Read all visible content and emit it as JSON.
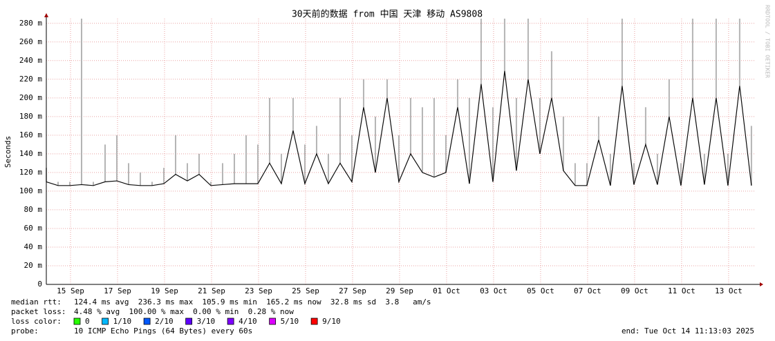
{
  "chart_data": {
    "type": "line",
    "title": "30天前的数据 from 中国 天津 移动 AS9808",
    "y_label": "Seconds",
    "side_text": "RRDTOOL / TOBI OETIKER",
    "x": [
      0,
      0.5,
      1,
      1.5,
      2,
      2.5,
      3,
      3.5,
      4,
      4.5,
      5,
      5.5,
      6,
      6.5,
      7,
      7.5,
      8,
      8.5,
      9,
      9.5,
      10,
      10.5,
      11,
      11.5,
      12,
      12.5,
      13,
      13.5,
      14,
      14.5,
      15,
      15.5,
      16,
      16.5,
      17,
      17.5,
      18,
      18.5,
      19,
      19.5,
      20,
      20.5,
      21,
      21.5,
      22,
      22.5,
      23,
      23.5,
      24,
      24.5,
      25,
      25.5,
      26,
      26.5,
      27,
      27.5,
      28,
      28.5,
      29,
      29.5,
      30
    ],
    "series": [
      {
        "color": "#0a0a0a",
        "style": "line",
        "values": [
          0.11,
          0.106,
          0.106,
          0.107,
          0.106,
          0.11,
          0.111,
          0.107,
          0.106,
          0.106,
          0.108,
          0.118,
          0.111,
          0.118,
          0.106,
          0.107,
          0.108,
          0.108,
          0.108,
          0.13,
          0.108,
          0.165,
          0.108,
          0.14,
          0.108,
          0.13,
          0.11,
          0.19,
          0.12,
          0.2,
          0.11,
          0.14,
          0.12,
          0.115,
          0.12,
          0.19,
          0.108,
          0.215,
          0.11,
          0.229,
          0.122,
          0.22,
          0.14,
          0.2,
          0.122,
          0.106,
          0.106,
          0.155,
          0.106,
          0.213,
          0.107,
          0.15,
          0.107,
          0.18,
          0.106,
          0.2,
          0.107,
          0.2,
          0.106,
          0.213,
          0.106
        ]
      },
      {
        "color": "#b4b4b4",
        "style": "spike",
        "values": [
          0.125,
          0.11,
          0.11,
          0.285,
          0.11,
          0.15,
          0.16,
          0.13,
          0.12,
          0.11,
          0.125,
          0.16,
          0.13,
          0.14,
          0.11,
          0.13,
          0.14,
          0.16,
          0.15,
          0.2,
          0.14,
          0.2,
          0.15,
          0.17,
          0.14,
          0.2,
          0.16,
          0.22,
          0.18,
          0.22,
          0.16,
          0.2,
          0.19,
          0.2,
          0.16,
          0.22,
          0.2,
          0.285,
          0.19,
          0.285,
          0.2,
          0.285,
          0.2,
          0.25,
          0.18,
          0.13,
          0.13,
          0.18,
          0.14,
          0.285,
          0.13,
          0.19,
          0.14,
          0.22,
          0.13,
          0.285,
          0.14,
          0.285,
          0.14,
          0.285,
          0.17
        ]
      }
    ],
    "xlim": [
      0,
      30.18
    ],
    "ylim": [
      0,
      0.285
    ],
    "xticks": [
      {
        "value": 1.03,
        "label": "15 Sep"
      },
      {
        "value": 3.03,
        "label": "17 Sep"
      },
      {
        "value": 5.03,
        "label": "19 Sep"
      },
      {
        "value": 7.03,
        "label": "21 Sep"
      },
      {
        "value": 9.03,
        "label": "23 Sep"
      },
      {
        "value": 11.03,
        "label": "25 Sep"
      },
      {
        "value": 13.03,
        "label": "27 Sep"
      },
      {
        "value": 15.03,
        "label": "29 Sep"
      },
      {
        "value": 17.03,
        "label": "01 Oct"
      },
      {
        "value": 19.03,
        "label": "03 Oct"
      },
      {
        "value": 21.03,
        "label": "05 Oct"
      },
      {
        "value": 23.03,
        "label": "07 Oct"
      },
      {
        "value": 25.03,
        "label": "09 Oct"
      },
      {
        "value": 27.03,
        "label": "11 Oct"
      },
      {
        "value": 29.03,
        "label": "13 Oct"
      }
    ],
    "yticks": [
      0,
      {
        "value": 0.02,
        "label": "20 m"
      },
      {
        "value": 0.04,
        "label": "40 m"
      },
      {
        "value": 0.06,
        "label": "60 m"
      },
      {
        "value": 0.08,
        "label": "80 m"
      },
      {
        "value": 0.1,
        "label": "100 m"
      },
      {
        "value": 0.12,
        "label": "120 m"
      },
      {
        "value": 0.14,
        "label": "140 m"
      },
      {
        "value": 0.16,
        "label": "160 m"
      },
      {
        "value": 0.18,
        "label": "180 m"
      },
      {
        "value": 0.2,
        "label": "200 m"
      },
      {
        "value": 0.22,
        "label": "220 m"
      },
      {
        "value": 0.24,
        "label": "240 m"
      },
      {
        "value": 0.26,
        "label": "260 m"
      },
      {
        "value": 0.28,
        "label": "280 m"
      }
    ],
    "grid": true
  },
  "footer": {
    "rtt_label": "median rtt:",
    "rtt_text": "124.4 ms avg  236.3 ms max  105.9 ms min  165.2 ms now  32.8 ms sd  3.8   am/s",
    "loss_label": "packet loss:",
    "loss_text": "4.48 % avg  100.00 % max  0.00 % min  0.28 % now",
    "color_label": "loss color:",
    "loss_colors": [
      {
        "name": "0",
        "color": "#26ff00"
      },
      {
        "name": "1/10",
        "color": "#00b8ff"
      },
      {
        "name": "2/10",
        "color": "#0059ff"
      },
      {
        "name": "3/10",
        "color": "#5e00ff"
      },
      {
        "name": "4/10",
        "color": "#7e00ff"
      },
      {
        "name": "5/10",
        "color": "#dd00ff"
      },
      {
        "name": "9/10",
        "color": "#ff0000"
      }
    ],
    "probe_label": "probe:",
    "probe_text": "10 ICMP Echo Pings (64 Bytes) every 60s",
    "end_text": "end: Tue Oct 14 11:13:03 2025"
  }
}
